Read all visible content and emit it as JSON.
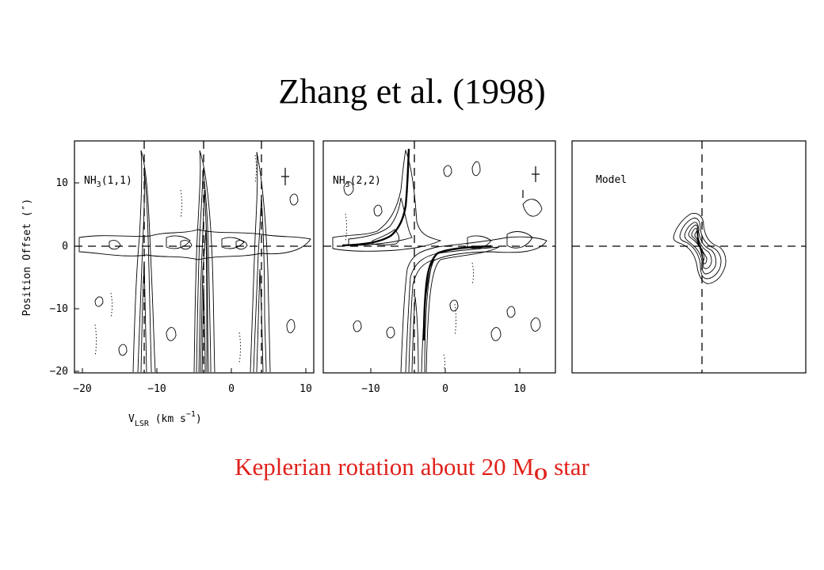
{
  "slide": {
    "title": "Zhang et al. (1998)",
    "caption": {
      "w1": "Keplerian",
      "w2": "rotation",
      "w3": "about",
      "w4": "20 M",
      "sub": "O",
      "w5": "star"
    },
    "caption_color": "#e0211b"
  },
  "figure": {
    "panels": [
      {
        "label_main": "NH",
        "label_sub": "3",
        "label_rest": "(1,1)"
      },
      {
        "label_main": "NH",
        "label_sub": "3",
        "label_rest": "(2,2)"
      },
      {
        "label": "Model"
      }
    ],
    "y_axis": {
      "label": "Position Offset (″)",
      "ticks": [
        "10",
        "0",
        "−10",
        "−20"
      ]
    },
    "x_axis": {
      "label_main": "V",
      "label_sub": "LSR",
      "label_rest": " (km s",
      "label_sup": "−1",
      "label_close": ")",
      "panel1_ticks": [
        "−20",
        "−10",
        "0",
        "10"
      ],
      "panel2_ticks": [
        "−10",
        "0",
        "10"
      ]
    }
  }
}
